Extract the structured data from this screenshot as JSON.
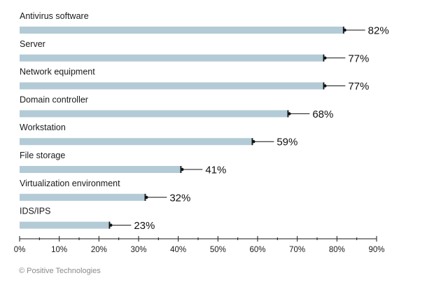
{
  "chart_data": {
    "type": "bar",
    "orientation": "horizontal",
    "title": "",
    "xlabel": "",
    "ylabel": "",
    "categories": [
      "Antivirus software",
      "Server",
      "Network equipment",
      "Domain controller",
      "Workstation",
      "File storage",
      "Virtualization environment",
      "IDS/IPS"
    ],
    "values": [
      82,
      77,
      77,
      68,
      59,
      41,
      32,
      23
    ],
    "value_labels": [
      "82%",
      "77%",
      "77%",
      "68%",
      "59%",
      "41%",
      "32%",
      "23%"
    ],
    "xlim": [
      0,
      90
    ],
    "xticks": [
      0,
      10,
      20,
      30,
      40,
      50,
      60,
      70,
      80,
      90
    ],
    "xtick_labels": [
      "0%",
      "10%",
      "20%",
      "30%",
      "40%",
      "50%",
      "60%",
      "70%",
      "80%",
      "90%"
    ],
    "grid": false,
    "colors": {
      "bar": "#b3cbd6",
      "axis": "#1a1a1a",
      "text": "#1a1a1a"
    }
  },
  "footer": {
    "credit": "© Positive Technologies"
  }
}
